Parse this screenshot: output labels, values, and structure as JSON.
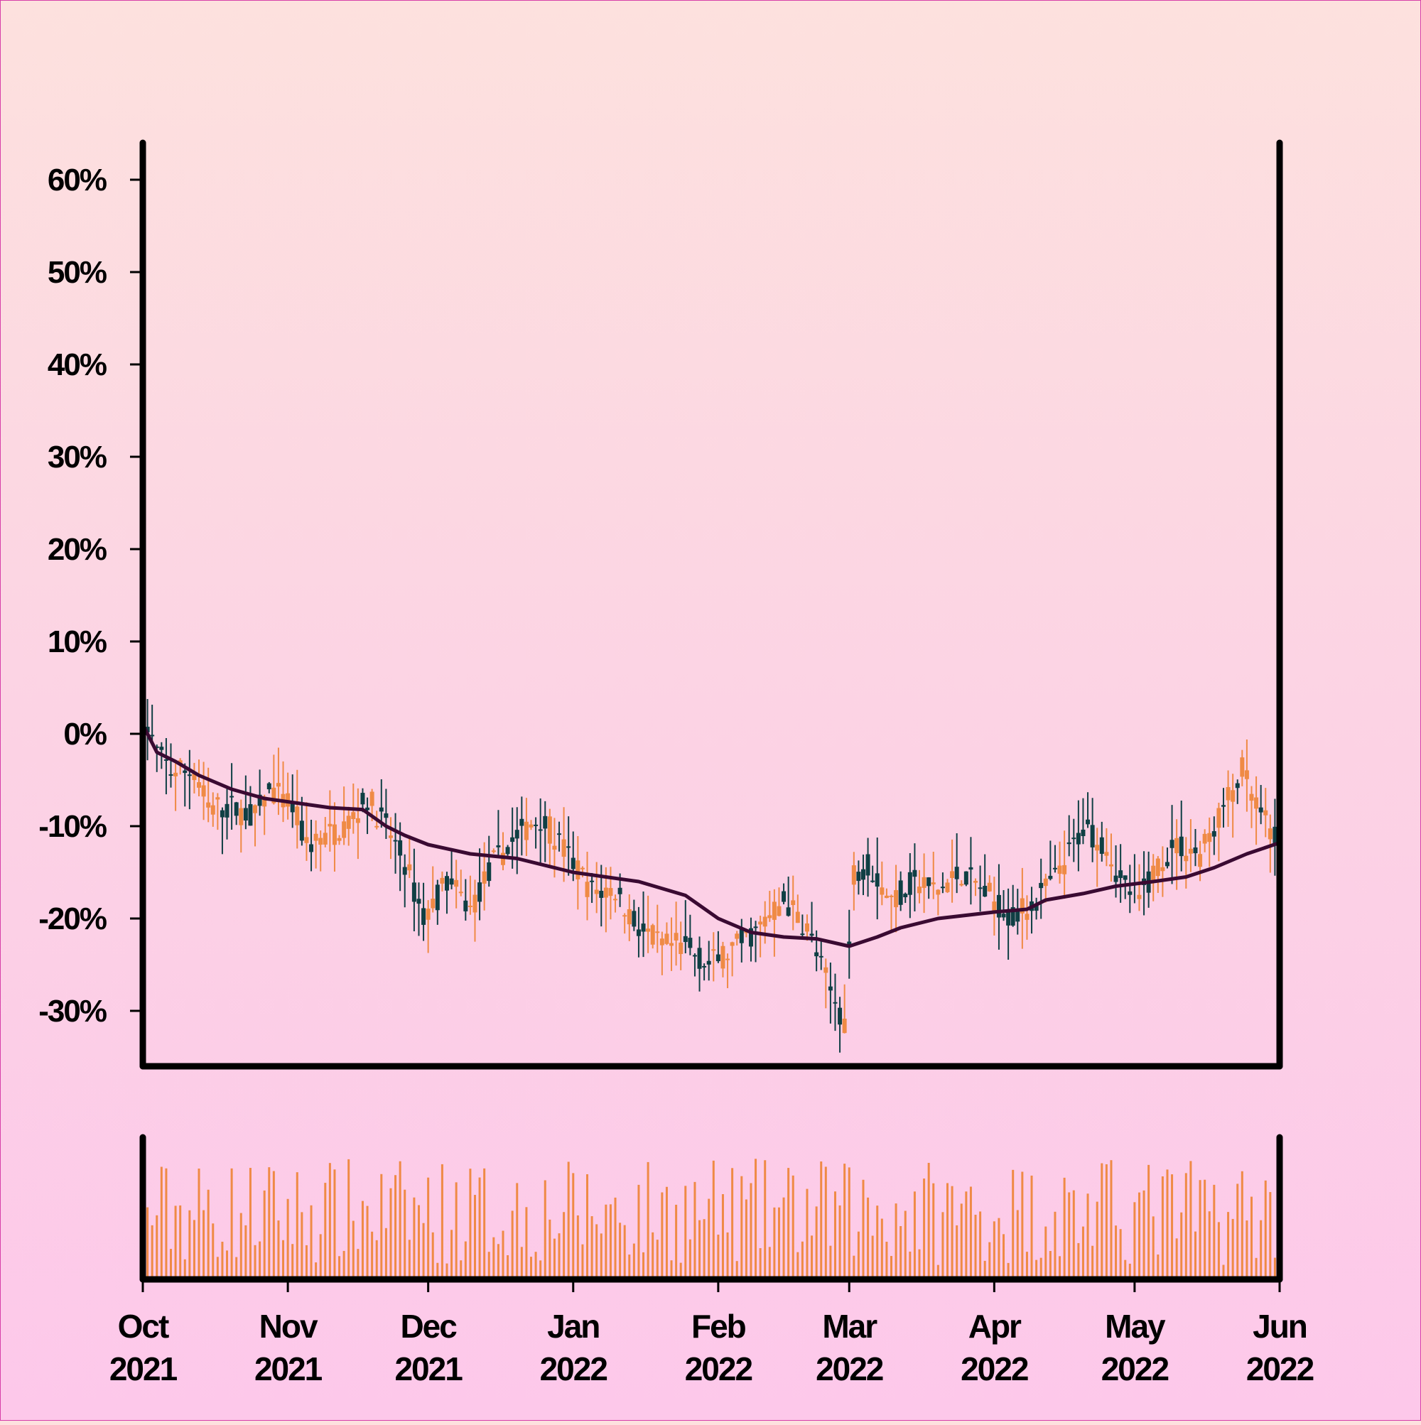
{
  "colors": {
    "up": "#ef8a45",
    "down": "#0f3f44",
    "ma_line": "#3a0a32",
    "volume": "#ef8a45",
    "frame": "#000000"
  },
  "chart_data": {
    "type": "candlestick",
    "title": "",
    "xlabel": "",
    "ylabel": "",
    "x_range": [
      "2021-10-01",
      "2022-06-01"
    ],
    "ylim": [
      -36,
      64
    ],
    "y_ticks": [
      60,
      50,
      40,
      30,
      20,
      10,
      0,
      -10,
      -20,
      -30
    ],
    "y_tick_labels": [
      "60%",
      "50%",
      "40%",
      "30%",
      "20%",
      "10%",
      "0%",
      "-10%",
      "-20%",
      "-30%"
    ],
    "x_ticks": [
      {
        "date": "2021-10-01",
        "month": "Oct",
        "year": "2021"
      },
      {
        "date": "2021-11-01",
        "month": "Nov",
        "year": "2021"
      },
      {
        "date": "2021-12-01",
        "month": "Dec",
        "year": "2021"
      },
      {
        "date": "2022-01-01",
        "month": "Jan",
        "year": "2022"
      },
      {
        "date": "2022-02-01",
        "month": "Feb",
        "year": "2022"
      },
      {
        "date": "2022-03-01",
        "month": "Mar",
        "year": "2022"
      },
      {
        "date": "2022-04-01",
        "month": "Apr",
        "year": "2022"
      },
      {
        "date": "2022-05-01",
        "month": "May",
        "year": "2022"
      },
      {
        "date": "2022-06-01",
        "month": "Jun",
        "year": "2022"
      }
    ],
    "close_trend": [
      [
        "2021-10-01",
        2
      ],
      [
        "2021-10-04",
        -2
      ],
      [
        "2021-10-07",
        -4
      ],
      [
        "2021-10-12",
        -4
      ],
      [
        "2021-10-15",
        -8
      ],
      [
        "2021-10-20",
        -8
      ],
      [
        "2021-10-25",
        -9
      ],
      [
        "2021-10-28",
        -6
      ],
      [
        "2021-11-02",
        -8
      ],
      [
        "2021-11-05",
        -12
      ],
      [
        "2021-11-10",
        -11
      ],
      [
        "2021-11-15",
        -9
      ],
      [
        "2021-11-18",
        -7
      ],
      [
        "2021-11-22",
        -10
      ],
      [
        "2021-11-26",
        -14
      ],
      [
        "2021-11-30",
        -20
      ],
      [
        "2021-12-05",
        -16
      ],
      [
        "2021-12-10",
        -19
      ],
      [
        "2021-12-15",
        -14
      ],
      [
        "2021-12-20",
        -11
      ],
      [
        "2021-12-25",
        -9
      ],
      [
        "2022-01-01",
        -14
      ],
      [
        "2022-01-05",
        -17
      ],
      [
        "2022-01-10",
        -17
      ],
      [
        "2022-01-15",
        -21
      ],
      [
        "2022-01-20",
        -23
      ],
      [
        "2022-01-25",
        -23
      ],
      [
        "2022-01-30",
        -25
      ],
      [
        "2022-02-05",
        -23
      ],
      [
        "2022-02-10",
        -21
      ],
      [
        "2022-02-15",
        -18
      ],
      [
        "2022-02-20",
        -21
      ],
      [
        "2022-02-25",
        -28
      ],
      [
        "2022-02-28",
        -31
      ],
      [
        "2022-03-02",
        -15
      ],
      [
        "2022-03-05",
        -14
      ],
      [
        "2022-03-10",
        -18
      ],
      [
        "2022-03-15",
        -16
      ],
      [
        "2022-03-20",
        -17
      ],
      [
        "2022-03-25",
        -15
      ],
      [
        "2022-04-01",
        -18
      ],
      [
        "2022-04-05",
        -20
      ],
      [
        "2022-04-10",
        -18
      ],
      [
        "2022-04-15",
        -15
      ],
      [
        "2022-04-20",
        -10
      ],
      [
        "2022-04-25",
        -12
      ],
      [
        "2022-04-28",
        -16
      ],
      [
        "2022-05-02",
        -18
      ],
      [
        "2022-05-06",
        -14
      ],
      [
        "2022-05-10",
        -12
      ],
      [
        "2022-05-15",
        -13
      ],
      [
        "2022-05-20",
        -8
      ],
      [
        "2022-05-24",
        -4
      ],
      [
        "2022-05-28",
        -9
      ],
      [
        "2022-06-01",
        -12
      ]
    ],
    "moving_average": [
      [
        "2021-10-01",
        1
      ],
      [
        "2021-10-04",
        -2
      ],
      [
        "2021-10-08",
        -3
      ],
      [
        "2021-10-13",
        -4.5
      ],
      [
        "2021-10-20",
        -6
      ],
      [
        "2021-10-27",
        -7
      ],
      [
        "2021-11-03",
        -7.5
      ],
      [
        "2021-11-10",
        -8
      ],
      [
        "2021-11-17",
        -8.2
      ],
      [
        "2021-11-22",
        -10
      ],
      [
        "2021-11-26",
        -11
      ],
      [
        "2021-12-01",
        -12
      ],
      [
        "2021-12-10",
        -13
      ],
      [
        "2021-12-20",
        -13.5
      ],
      [
        "2022-01-01",
        -15
      ],
      [
        "2022-01-15",
        -16
      ],
      [
        "2022-01-25",
        -17.5
      ],
      [
        "2022-02-01",
        -20
      ],
      [
        "2022-02-08",
        -21.5
      ],
      [
        "2022-02-15",
        -22
      ],
      [
        "2022-02-22",
        -22.2
      ],
      [
        "2022-03-01",
        -23
      ],
      [
        "2022-03-07",
        -22
      ],
      [
        "2022-03-12",
        -21
      ],
      [
        "2022-03-20",
        -20
      ],
      [
        "2022-04-01",
        -19.3
      ],
      [
        "2022-04-08",
        -19
      ],
      [
        "2022-04-12",
        -18
      ],
      [
        "2022-04-20",
        -17.3
      ],
      [
        "2022-04-27",
        -16.5
      ],
      [
        "2022-05-05",
        -16
      ],
      [
        "2022-05-12",
        -15.5
      ],
      [
        "2022-05-18",
        -14.5
      ],
      [
        "2022-05-25",
        -13
      ],
      [
        "2022-06-01",
        -11.8
      ]
    ]
  }
}
